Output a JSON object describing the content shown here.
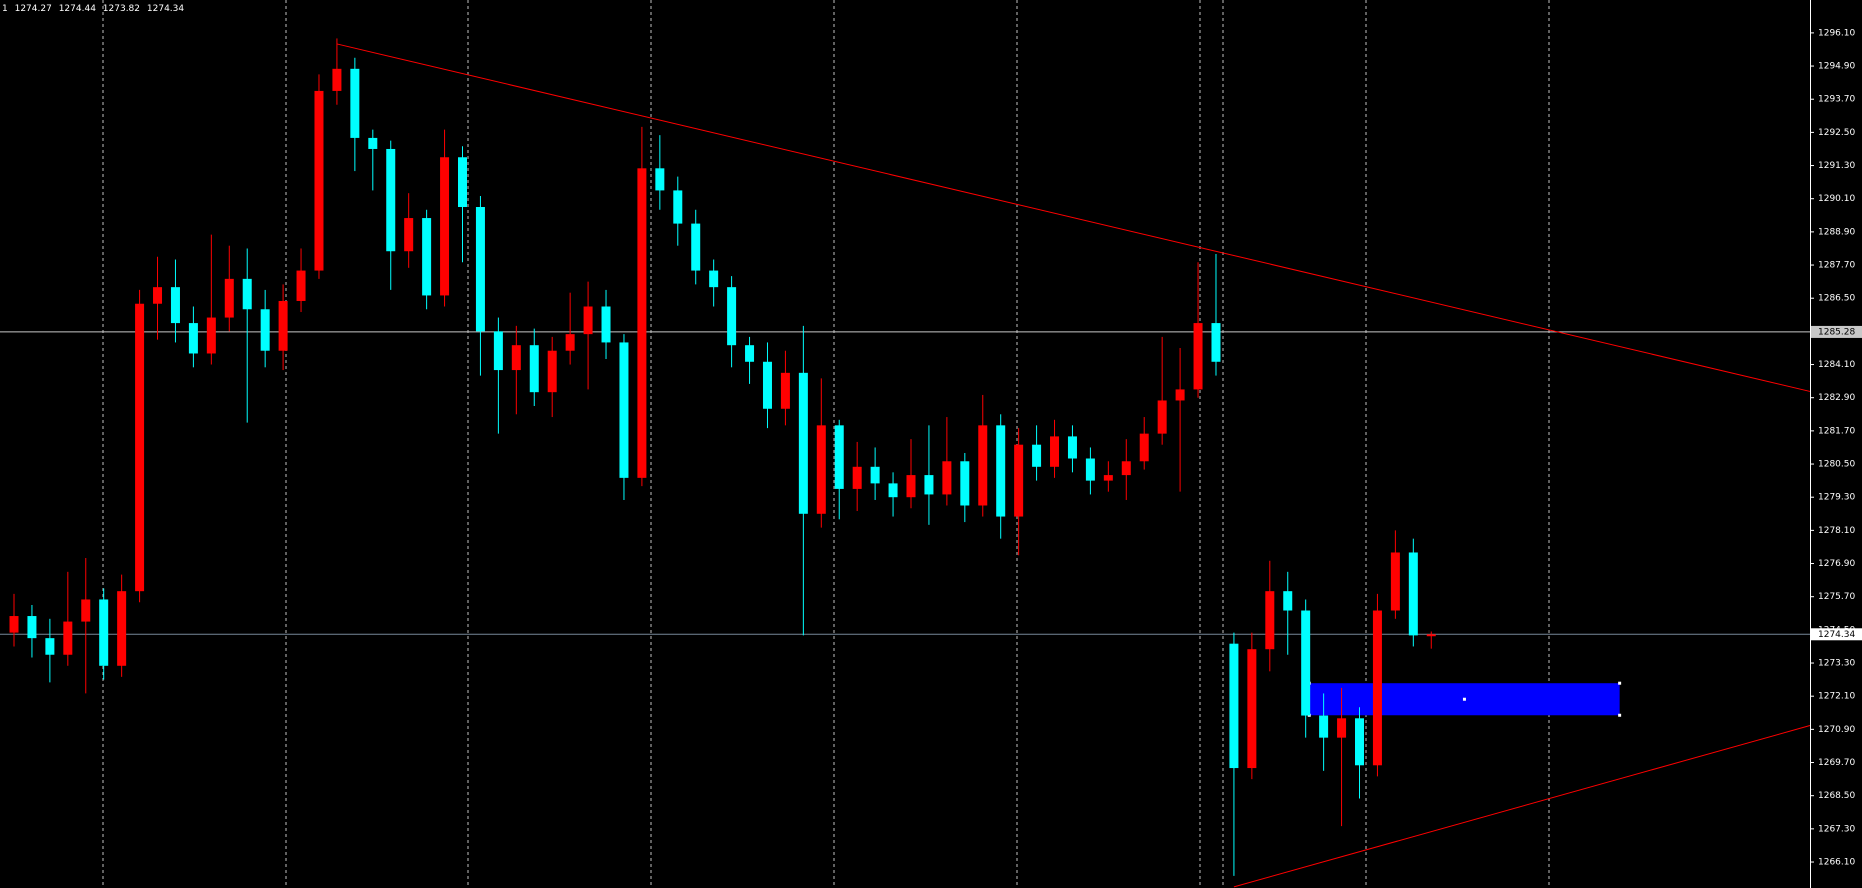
{
  "chart_data": {
    "type": "candlestick",
    "header_prefix": "1",
    "open": [
      1274.4,
      1275.0,
      1274.2,
      1273.6,
      1274.8,
      1275.6,
      1273.2,
      1275.9,
      1286.3,
      1286.9,
      1285.6,
      1284.5,
      1285.8,
      1287.2,
      1286.1,
      1284.6,
      1286.4,
      1287.5,
      1294.0,
      1294.8,
      1292.3,
      1291.9,
      1288.2,
      1289.4,
      1286.6,
      1291.6,
      1289.8,
      1285.3,
      1283.9,
      1284.8,
      1283.1,
      1284.6,
      1285.2,
      1286.2,
      1284.9,
      1280.0,
      1291.2,
      1290.4,
      1289.2,
      1287.5,
      1286.9,
      1284.8,
      1284.2,
      1282.5,
      1283.8,
      1278.7,
      1281.9,
      1279.6,
      1280.4,
      1279.8,
      1279.3,
      1280.1,
      1279.4,
      1280.6,
      1279.0,
      1281.9,
      1278.6,
      1281.2,
      1280.4,
      1281.5,
      1280.7,
      1279.9,
      1280.1,
      1280.6,
      1281.6,
      1282.8,
      1283.2,
      1285.6,
      1274.0,
      1269.5,
      1273.8,
      1275.9,
      1275.2,
      1271.4,
      1270.6,
      1271.3,
      1269.6,
      1275.2,
      1277.3,
      1274.27
    ],
    "high": [
      1275.8,
      1275.4,
      1274.9,
      1276.6,
      1277.1,
      1276.0,
      1276.5,
      1286.8,
      1288.0,
      1287.9,
      1286.2,
      1288.8,
      1288.4,
      1288.3,
      1286.8,
      1287.0,
      1288.3,
      1294.6,
      1295.9,
      1295.2,
      1292.6,
      1292.2,
      1290.3,
      1289.7,
      1292.6,
      1292.0,
      1290.2,
      1285.8,
      1285.5,
      1285.4,
      1285.1,
      1286.7,
      1287.1,
      1286.8,
      1285.2,
      1292.7,
      1292.4,
      1290.9,
      1289.7,
      1287.9,
      1287.3,
      1285.1,
      1284.9,
      1284.6,
      1285.5,
      1283.6,
      1282.1,
      1281.3,
      1281.1,
      1280.2,
      1281.4,
      1281.9,
      1282.2,
      1280.9,
      1283.0,
      1282.3,
      1281.8,
      1281.9,
      1282.1,
      1281.9,
      1281.1,
      1280.6,
      1281.4,
      1282.2,
      1285.1,
      1284.7,
      1287.8,
      1288.1,
      1274.4,
      1274.4,
      1277.0,
      1276.6,
      1275.6,
      1272.2,
      1272.4,
      1271.7,
      1275.8,
      1278.1,
      1277.8,
      1274.44
    ],
    "low": [
      1273.9,
      1273.5,
      1272.6,
      1273.2,
      1272.2,
      1272.7,
      1272.8,
      1275.5,
      1285.0,
      1284.9,
      1284.0,
      1284.1,
      1285.3,
      1282.0,
      1284.0,
      1283.9,
      1286.0,
      1287.2,
      1293.5,
      1291.1,
      1290.4,
      1286.8,
      1287.6,
      1286.1,
      1286.2,
      1287.8,
      1283.7,
      1281.6,
      1282.3,
      1282.6,
      1282.2,
      1284.1,
      1283.2,
      1284.3,
      1279.2,
      1279.7,
      1289.7,
      1288.4,
      1287.0,
      1286.2,
      1284.0,
      1283.4,
      1281.8,
      1281.9,
      1274.3,
      1278.2,
      1278.5,
      1278.8,
      1279.2,
      1278.6,
      1278.9,
      1278.3,
      1279.0,
      1278.4,
      1278.6,
      1277.8,
      1277.2,
      1279.9,
      1280.0,
      1280.2,
      1279.4,
      1279.5,
      1279.2,
      1280.3,
      1281.2,
      1279.5,
      1282.9,
      1283.7,
      1265.6,
      1269.1,
      1273.0,
      1273.6,
      1270.6,
      1269.4,
      1267.4,
      1268.4,
      1269.2,
      1274.9,
      1273.9,
      1273.82
    ],
    "close": [
      1275.0,
      1274.2,
      1273.6,
      1274.8,
      1275.6,
      1273.2,
      1275.9,
      1286.3,
      1286.9,
      1285.6,
      1284.5,
      1285.8,
      1287.2,
      1286.1,
      1284.6,
      1286.4,
      1287.5,
      1294.0,
      1294.8,
      1292.3,
      1291.9,
      1288.2,
      1289.4,
      1286.6,
      1291.6,
      1289.8,
      1285.3,
      1283.9,
      1284.8,
      1283.1,
      1284.6,
      1285.2,
      1286.2,
      1284.9,
      1280.0,
      1291.2,
      1290.4,
      1289.2,
      1287.5,
      1286.9,
      1284.8,
      1284.2,
      1282.5,
      1283.8,
      1278.7,
      1281.9,
      1279.6,
      1280.4,
      1279.8,
      1279.3,
      1280.1,
      1279.4,
      1280.6,
      1279.0,
      1281.9,
      1278.6,
      1281.2,
      1280.4,
      1281.5,
      1280.7,
      1279.9,
      1280.1,
      1280.6,
      1281.6,
      1282.8,
      1283.2,
      1285.6,
      1284.2,
      1269.5,
      1273.8,
      1275.9,
      1275.2,
      1271.4,
      1270.6,
      1271.3,
      1269.6,
      1275.2,
      1277.3,
      1274.3,
      1274.34
    ],
    "up_color": "#ff0000",
    "down_color": "#00ffff",
    "ylim": [
      1265.16,
      1297.29
    ],
    "yticks": [
      {
        "value": 1296.1,
        "label": "1296.10"
      },
      {
        "value": 1294.9,
        "label": "1294.90"
      },
      {
        "value": 1293.7,
        "label": "1293.70"
      },
      {
        "value": 1292.5,
        "label": "1292.50"
      },
      {
        "value": 1291.3,
        "label": "1291.30"
      },
      {
        "value": 1290.1,
        "label": "1290.10"
      },
      {
        "value": 1288.9,
        "label": "1288.90"
      },
      {
        "value": 1287.7,
        "label": "1287.70"
      },
      {
        "value": 1286.5,
        "label": "1286.50"
      },
      {
        "value": 1284.1,
        "label": "1284.10"
      },
      {
        "value": 1282.9,
        "label": "1282.90"
      },
      {
        "value": 1281.7,
        "label": "1281.70"
      },
      {
        "value": 1280.5,
        "label": "1280.50"
      },
      {
        "value": 1279.3,
        "label": "1279.30"
      },
      {
        "value": 1278.1,
        "label": "1278.10"
      },
      {
        "value": 1276.9,
        "label": "1276.90"
      },
      {
        "value": 1275.7,
        "label": "1275.70"
      },
      {
        "value": 1274.5,
        "label": "1274.50"
      },
      {
        "value": 1273.3,
        "label": "1273.30"
      },
      {
        "value": 1272.1,
        "label": "1272.10"
      },
      {
        "value": 1270.9,
        "label": "1270.90"
      },
      {
        "value": 1269.7,
        "label": "1269.70"
      },
      {
        "value": 1268.5,
        "label": "1268.50"
      },
      {
        "value": 1267.3,
        "label": "1267.30"
      },
      {
        "value": 1266.1,
        "label": "1266.10"
      }
    ],
    "price_lines": [
      {
        "value": 1285.28,
        "color": "#c8c8c8"
      }
    ],
    "bid_line_color": "#778899",
    "trendlines": [
      {
        "points": [
          {
            "bar": 18,
            "price": 1295.7
          },
          {
            "bar": 66,
            "price": 1288.35
          }
        ],
        "color": "#ff0000"
      },
      {
        "points": [
          {
            "bar": 68,
            "price": 1265.2
          },
          {
            "bar": 79,
            "price": 1267.2
          }
        ],
        "color": "#ff0000"
      }
    ],
    "rectangles": [
      {
        "bar_start": 72.2,
        "bar_end": 89.5,
        "price_top": 1272.57,
        "price_bottom": 1271.41,
        "color": "#0000ff"
      }
    ]
  }
}
